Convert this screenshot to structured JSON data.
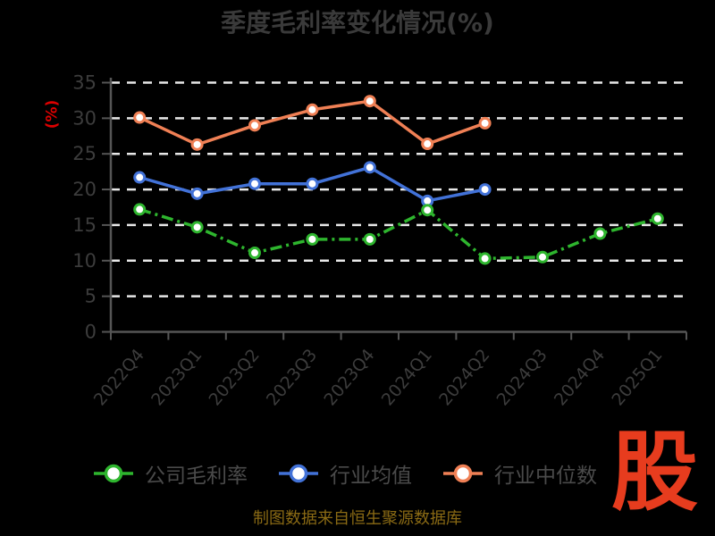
{
  "chart": {
    "title": "季度毛利率变化情况(%)",
    "ylabel": "(%)",
    "source_note": "制图数据来自恒生聚源数据库",
    "logo_text": "股"
  },
  "colors": {
    "background": "#000000",
    "title_text": "#3a3a3a",
    "tick_text": "#3c3c3c",
    "legend_text": "#4a4a4a",
    "grid": "#e8e8e8",
    "axis": "#555555",
    "ylabel_red": "#dd0000",
    "source_gold": "#8a6a14",
    "logo_red": "#e73c1e"
  },
  "chart_data": {
    "type": "line",
    "title": "季度毛利率变化情况(%)",
    "xlabel": "",
    "ylabel": "(%)",
    "categories": [
      "2022Q4",
      "2023Q1",
      "2023Q2",
      "2023Q3",
      "2023Q4",
      "2024Q1",
      "2024Q2",
      "2024Q3",
      "2024Q4",
      "2025Q1"
    ],
    "ylim": [
      0,
      35
    ],
    "yticks": [
      0,
      5,
      10,
      15,
      20,
      25,
      30,
      35
    ],
    "grid": "horizontal-dashed-white",
    "legend_position": "bottom",
    "series": [
      {
        "name": "公司毛利率",
        "color": "#2eb52e",
        "line_style": "dashdot",
        "marker": "circle-white-fill",
        "values": [
          17.2,
          14.7,
          11.1,
          13.0,
          13.0,
          17.1,
          10.3,
          10.5,
          13.8,
          15.9
        ]
      },
      {
        "name": "行业均值",
        "color": "#4272d8",
        "line_style": "solid",
        "marker": "circle-white-fill",
        "values": [
          21.7,
          19.4,
          20.8,
          20.8,
          23.1,
          18.4,
          20.0,
          null,
          null,
          null
        ]
      },
      {
        "name": "行业中位数",
        "color": "#f08055",
        "line_style": "solid",
        "marker": "circle-white-fill",
        "values": [
          30.1,
          26.3,
          29.0,
          31.2,
          32.4,
          26.4,
          29.3,
          null,
          null,
          null
        ]
      }
    ]
  }
}
